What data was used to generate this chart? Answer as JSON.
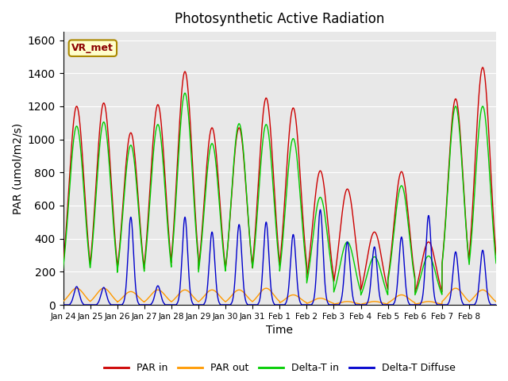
{
  "title": "Photosynthetic Active Radiation",
  "xlabel": "Time",
  "ylabel": "PAR (umol/m2/s)",
  "ylim": [
    0,
    1650
  ],
  "yticks": [
    0,
    200,
    400,
    600,
    800,
    1000,
    1200,
    1400,
    1600
  ],
  "annotation": "VR_met",
  "bg_color": "#e8e8e8",
  "line_colors": {
    "PAR in": "#cc0000",
    "PAR out": "#ff9900",
    "Delta-T in": "#00cc00",
    "Delta-T Diffuse": "#0000cc"
  },
  "xtick_labels": [
    "Jan 24",
    "Jan 25",
    "Jan 26",
    "Jan 27",
    "Jan 28",
    "Jan 29",
    "Jan 30",
    "Jan 31",
    "Feb 1",
    "Feb 2",
    "Feb 3",
    "Feb 4",
    "Feb 5",
    "Feb 6",
    "Feb 7",
    "Feb 8"
  ],
  "day_peaks_PAR_in": [
    1200,
    1220,
    1040,
    1210,
    1410,
    1070,
    1070,
    1250,
    1190,
    810,
    700,
    440,
    805,
    380,
    1245,
    1435
  ],
  "day_peaks_PAR_out": [
    100,
    100,
    80,
    90,
    90,
    90,
    90,
    100,
    60,
    40,
    20,
    20,
    60,
    20,
    100,
    90
  ],
  "day_peaks_DeltaT_in": [
    1080,
    1105,
    965,
    1090,
    1280,
    975,
    1095,
    1090,
    1005,
    650,
    380,
    290,
    720,
    295,
    1200,
    1200
  ],
  "day_peaks_DeltaT_diff": [
    110,
    105,
    530,
    115,
    530,
    440,
    485,
    500,
    425,
    575,
    380,
    350,
    410,
    540,
    320,
    330
  ],
  "n_days": 16,
  "pts_per_day": 200
}
